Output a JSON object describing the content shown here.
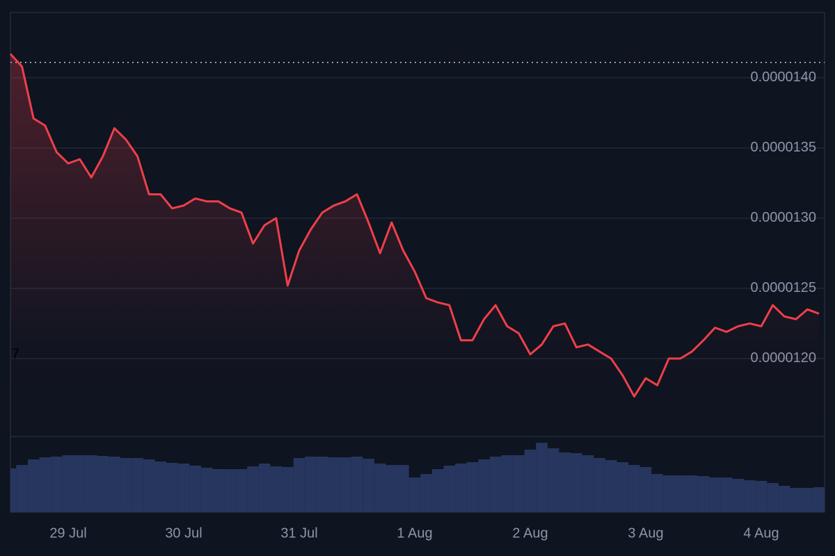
{
  "chart_data": {
    "type": "line",
    "categories": [
      null,
      null,
      null,
      null,
      null,
      "29 Jul",
      null,
      null,
      null,
      null,
      null,
      null,
      null,
      null,
      null,
      "30 Jul",
      null,
      null,
      null,
      null,
      null,
      null,
      null,
      null,
      null,
      "31 Jul",
      null,
      null,
      null,
      null,
      null,
      null,
      null,
      null,
      null,
      "1 Aug",
      null,
      null,
      null,
      null,
      null,
      null,
      null,
      null,
      null,
      "2 Aug",
      null,
      null,
      null,
      null,
      null,
      null,
      null,
      null,
      null,
      "3 Aug",
      null,
      null,
      null,
      null,
      null,
      null,
      null,
      null,
      null,
      "4 Aug",
      null,
      null,
      null,
      null,
      null
    ],
    "series": [
      {
        "color": "#ef3f4a",
        "values": [
          1.417e-05,
          1.408e-05,
          1.371e-05,
          1.366e-05,
          1.347e-05,
          1.339e-05,
          1.342e-05,
          1.329e-05,
          1.344e-05,
          1.364e-05,
          1.356e-05,
          1.344e-05,
          1.317e-05,
          1.317e-05,
          1.307e-05,
          1.309e-05,
          1.314e-05,
          1.312e-05,
          1.312e-05,
          1.307e-05,
          1.304e-05,
          1.282e-05,
          1.295e-05,
          1.3e-05,
          1.252e-05,
          1.277e-05,
          1.292e-05,
          1.304e-05,
          1.309e-05,
          1.312e-05,
          1.317e-05,
          1.297e-05,
          1.275e-05,
          1.297e-05,
          1.277e-05,
          1.262e-05,
          1.243e-05,
          1.24e-05,
          1.238e-05,
          1.213e-05,
          1.213e-05,
          1.228e-05,
          1.238e-05,
          1.223e-05,
          1.218e-05,
          1.203e-05,
          1.21e-05,
          1.223e-05,
          1.225e-05,
          1.208e-05,
          1.21e-05,
          1.205e-05,
          1.2e-05,
          1.188e-05,
          1.173e-05,
          1.186e-05,
          1.181e-05,
          1.2e-05,
          1.2e-05,
          1.205e-05,
          1.213e-05,
          1.222e-05,
          1.219e-05,
          1.223e-05,
          1.225e-05,
          1.223e-05,
          1.238e-05,
          1.23e-05,
          1.228e-05,
          1.235e-05,
          1.232e-05
        ]
      },
      {
        "color": "#27365e",
        "values": [
          63,
          68,
          76,
          79,
          80,
          82,
          82,
          82,
          81,
          80,
          78,
          78,
          76,
          73,
          71,
          70,
          67,
          64,
          62,
          62,
          62,
          66,
          70,
          66,
          65,
          78,
          80,
          80,
          79,
          79,
          80,
          77,
          70,
          68,
          68,
          50,
          55,
          62,
          67,
          70,
          72,
          76,
          80,
          82,
          82,
          90,
          100,
          92,
          86,
          85,
          82,
          78,
          75,
          72,
          68,
          65,
          55,
          53,
          53,
          53,
          52,
          50,
          50,
          48,
          46,
          45,
          42,
          38,
          35,
          35,
          36
        ]
      }
    ],
    "ylim": [
      1.1445e-05,
      1.4465e-05
    ],
    "yticks": [
      {
        "value": 1.2e-05,
        "label": "0.0000120"
      },
      {
        "value": 1.25e-05,
        "label": "0.0000125"
      },
      {
        "value": 1.3e-05,
        "label": "0.0000130"
      },
      {
        "value": 1.35e-05,
        "label": "0.0000135"
      },
      {
        "value": 1.4e-05,
        "label": "0.0000140"
      }
    ],
    "y2lim": [
      0,
      109
    ],
    "reference_line": 1.411e-05,
    "annotations": [
      "7"
    ],
    "grid": true
  }
}
